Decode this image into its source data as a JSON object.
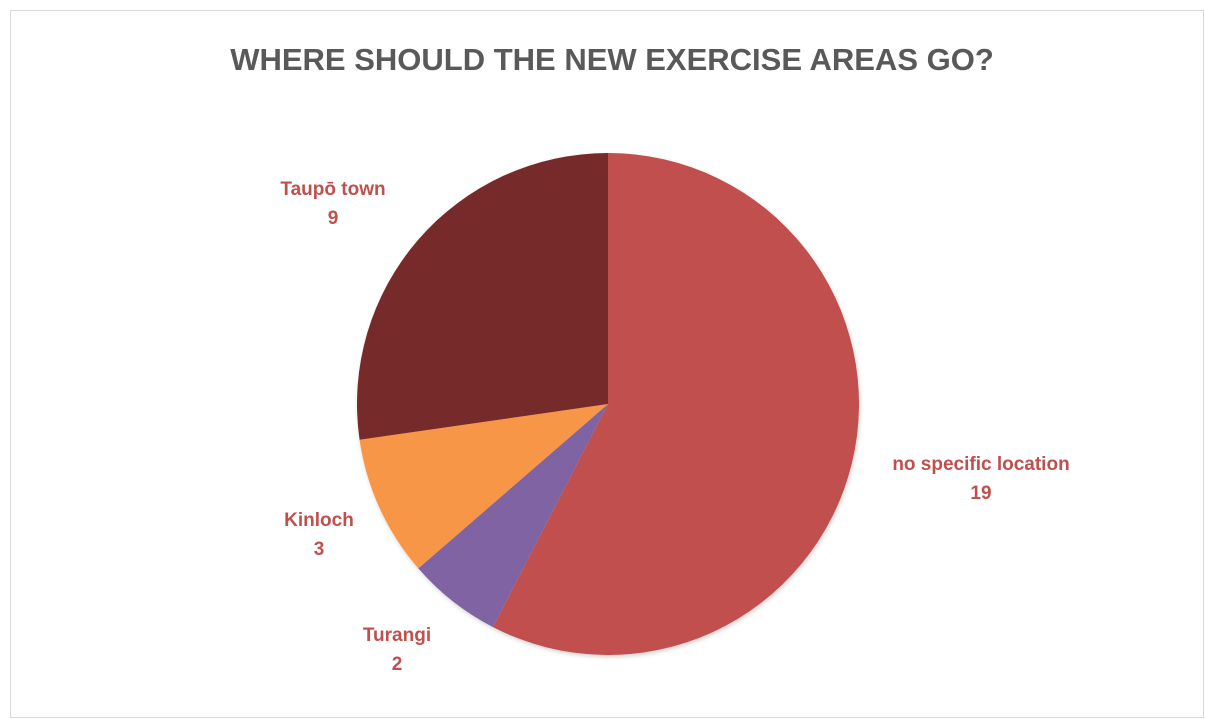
{
  "chart_data": {
    "type": "pie",
    "title": "WHERE SHOULD THE NEW EXERCISE AREAS GO?",
    "categories": [
      "no specific location",
      "Turangi",
      "Kinloch",
      "Taupō town"
    ],
    "values": [
      19,
      2,
      3,
      9
    ],
    "colors": [
      "#c0504d",
      "#8064a2",
      "#f79646",
      "#772c2a"
    ],
    "label_color": "#c0504d",
    "legend": "none",
    "data_labels": "category-and-value"
  }
}
